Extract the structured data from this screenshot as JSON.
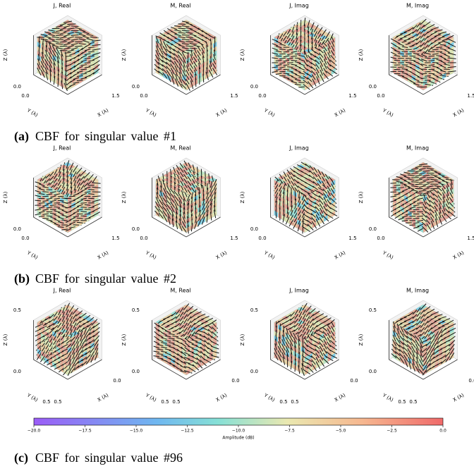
{
  "rows": [
    {
      "caption_label": "(a)",
      "caption": "CBF for singular value #1",
      "titles": [
        "J, Real",
        "M, Real",
        "J, Imag",
        "M, Imag"
      ],
      "axis_labels": {
        "x": "X (λ)",
        "y": "Y (λ)",
        "z": "Z (λ)"
      },
      "ticks": {
        "z": [
          "0.0"
        ],
        "y": [
          "0.0"
        ],
        "x": [
          "1.5"
        ]
      }
    },
    {
      "caption_label": "(b)",
      "caption": "CBF for singular value #2",
      "titles": [
        "J, Real",
        "M, Real",
        "J, Imag",
        "M, Imag"
      ],
      "axis_labels": {
        "x": "X (λ)",
        "y": "Y (λ)",
        "z": "Z (λ)"
      },
      "ticks": {
        "z": [
          "0.0"
        ],
        "y": [
          "0.0"
        ],
        "x": [
          "1.5"
        ]
      }
    },
    {
      "caption_label": "(c)",
      "caption": "CBF for singular value #96",
      "titles": [
        "J, Real",
        "M, Real",
        "J, Imag",
        "M, Imag"
      ],
      "axis_labels": {
        "x": "X (λ)",
        "y": "Y (λ)",
        "z": "Z (λ)"
      },
      "ticks": {
        "z": [
          "0.0",
          "0.5"
        ],
        "y": [
          "0.5"
        ],
        "x": [
          "0.5",
          "0.0"
        ]
      }
    }
  ],
  "colorbar": {
    "label": "Amplitude (dB)",
    "ticks": [
      "−20.0",
      "−17.5",
      "−15.0",
      "−12.5",
      "−10.0",
      "−7.5",
      "−5.0",
      "−2.5",
      "0.0"
    ]
  }
}
